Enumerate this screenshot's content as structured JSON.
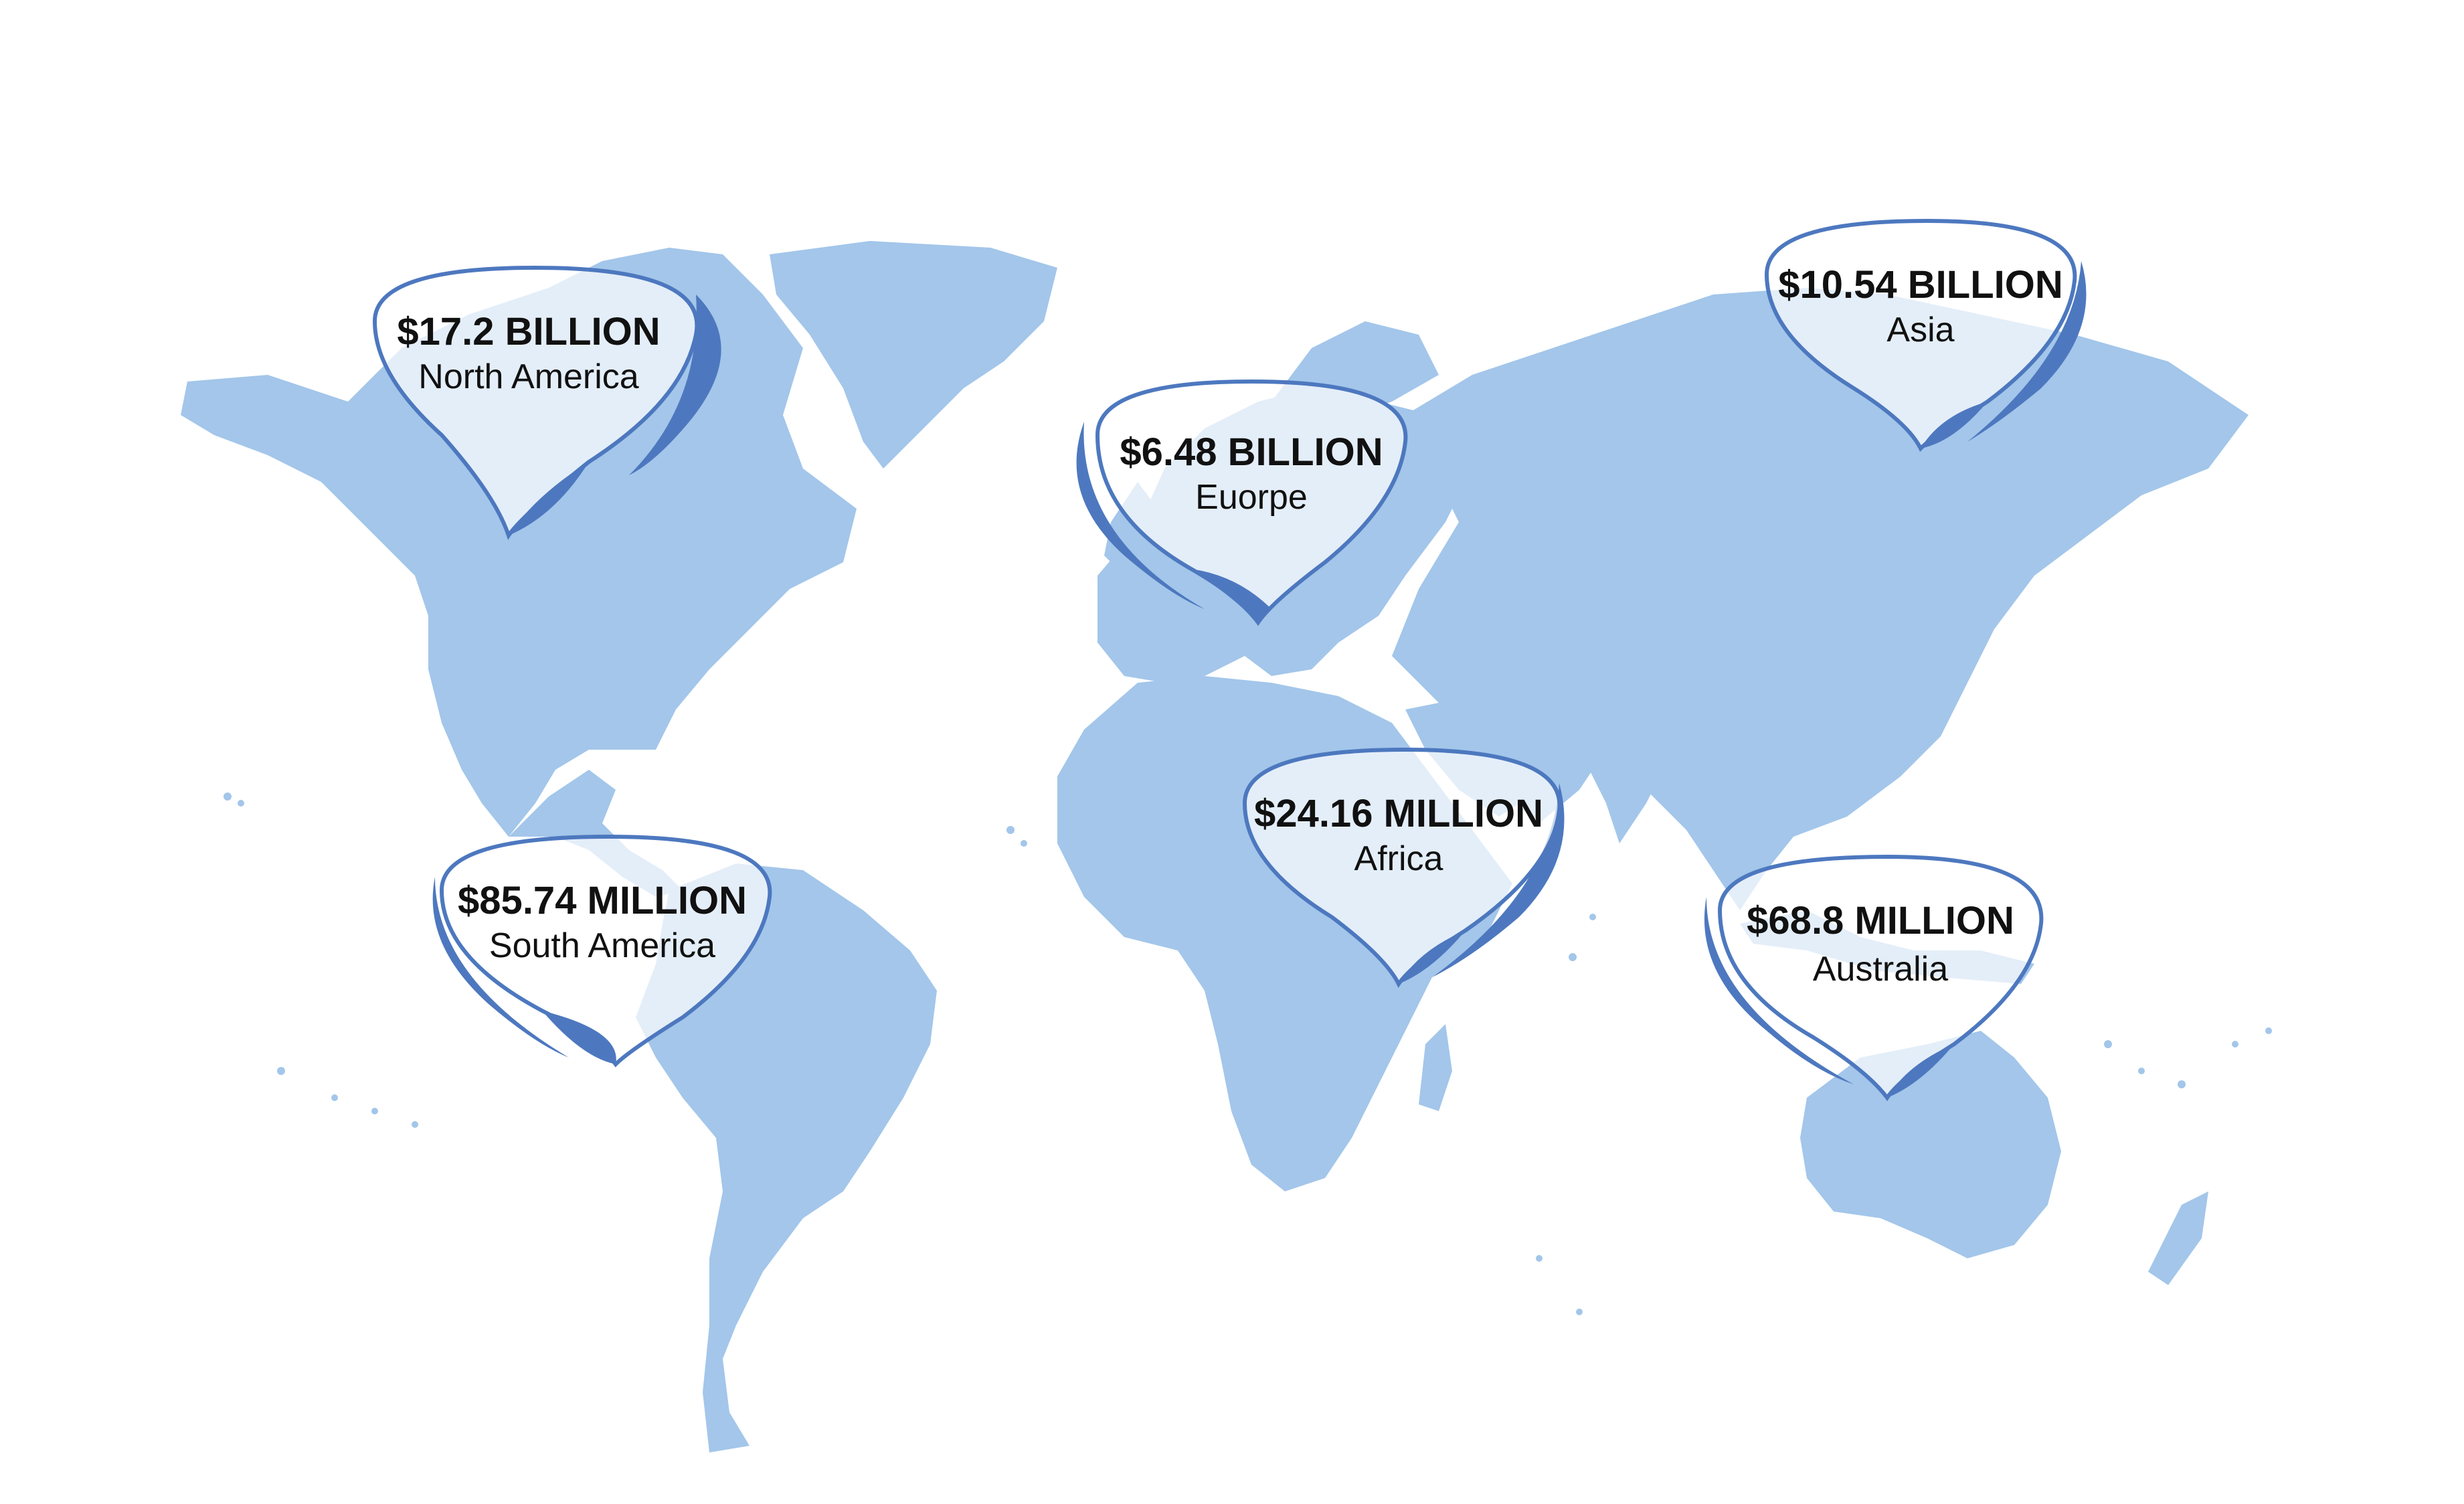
{
  "map": {
    "land_color": "#a3c6ea",
    "bubble_color": "#4d78bf",
    "labels": [
      {
        "id": "north-america",
        "value": "$17.2 BILLION",
        "region": "North America"
      },
      {
        "id": "europe",
        "value": "$6.48 BILLION",
        "region": "Euorpe"
      },
      {
        "id": "asia",
        "value": "$10.54 BILLION",
        "region": "Asia"
      },
      {
        "id": "africa",
        "value": "$24.16 MILLION",
        "region": "Africa"
      },
      {
        "id": "south-america",
        "value": "$85.74 MILLION",
        "region": "South America"
      },
      {
        "id": "australia",
        "value": "$68.8 MILLION",
        "region": "Australia"
      }
    ]
  }
}
